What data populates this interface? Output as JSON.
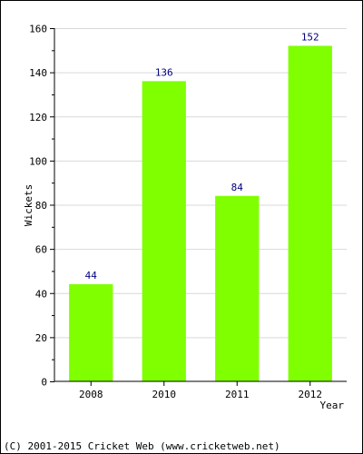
{
  "chart_data": {
    "type": "bar",
    "categories": [
      "2008",
      "2010",
      "2011",
      "2012"
    ],
    "values": [
      44,
      136,
      84,
      152
    ],
    "title": "",
    "xlabel": "Year",
    "ylabel": "Wickets",
    "ylim": [
      0,
      160
    ],
    "yticks": [
      0,
      20,
      40,
      60,
      80,
      100,
      120,
      140,
      160
    ],
    "grid": true,
    "data_labels": true,
    "colors": {
      "bar": "#7fff00",
      "data_label": "#000080",
      "grid": "#d9d9d9"
    }
  },
  "footer": {
    "copyright": "(C) 2001-2015 Cricket Web (www.cricketweb.net)"
  }
}
